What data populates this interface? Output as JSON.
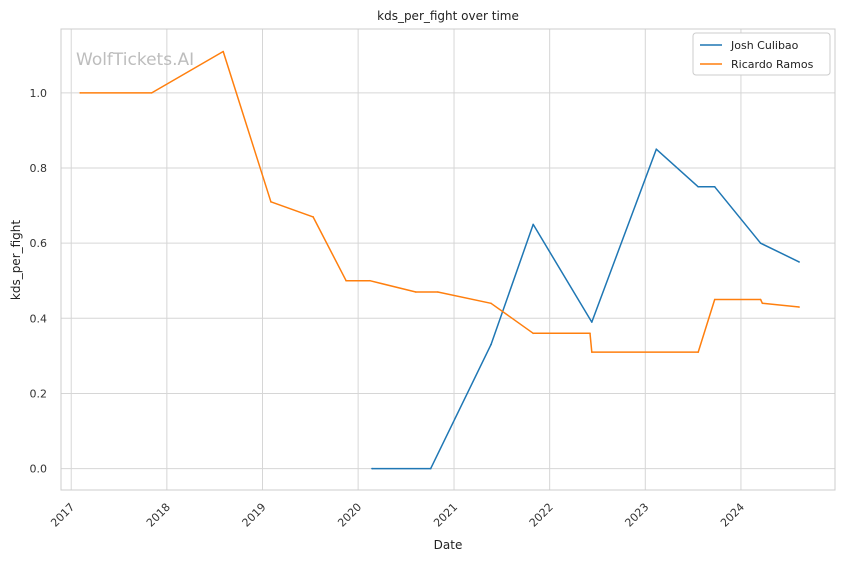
{
  "chart_data": {
    "type": "line",
    "title": "kds_per_fight over time",
    "xlabel": "Date",
    "ylabel": "kds_per_fight",
    "watermark": "WolfTickets.AI",
    "x_ticks": [
      "2017",
      "2018",
      "2019",
      "2020",
      "2021",
      "2022",
      "2023",
      "2024"
    ],
    "y_ticks": [
      "0.0",
      "0.2",
      "0.4",
      "0.6",
      "0.8",
      "1.0"
    ],
    "xlim": [
      "2016-11-23",
      "2024-12-25"
    ],
    "ylim": [
      -0.057,
      1.17
    ],
    "grid": true,
    "legend_position": "top-right",
    "series": [
      {
        "name": "Josh Culibao",
        "color": "#1f77b4",
        "points": [
          {
            "x": "2020-02-23",
            "y": 0.0
          },
          {
            "x": "2020-10-04",
            "y": 0.0
          },
          {
            "x": "2021-05-22",
            "y": 0.33
          },
          {
            "x": "2021-10-30",
            "y": 0.65
          },
          {
            "x": "2022-06-11",
            "y": 0.39
          },
          {
            "x": "2023-02-12",
            "y": 0.85
          },
          {
            "x": "2023-07-22",
            "y": 0.75
          },
          {
            "x": "2023-09-23",
            "y": 0.75
          },
          {
            "x": "2024-03-16",
            "y": 0.6
          },
          {
            "x": "2024-08-10",
            "y": 0.55
          }
        ]
      },
      {
        "name": "Ricardo Ramos",
        "color": "#ff7f0e",
        "points": [
          {
            "x": "2017-02-04",
            "y": 1.0
          },
          {
            "x": "2017-11-04",
            "y": 1.0
          },
          {
            "x": "2018-08-04",
            "y": 1.11
          },
          {
            "x": "2019-02-02",
            "y": 0.71
          },
          {
            "x": "2019-07-13",
            "y": 0.67
          },
          {
            "x": "2019-11-16",
            "y": 0.5
          },
          {
            "x": "2020-02-15",
            "y": 0.5
          },
          {
            "x": "2020-08-08",
            "y": 0.47
          },
          {
            "x": "2020-10-31",
            "y": 0.47
          },
          {
            "x": "2021-05-22",
            "y": 0.44
          },
          {
            "x": "2021-10-30",
            "y": 0.36
          },
          {
            "x": "2022-06-04",
            "y": 0.36
          },
          {
            "x": "2022-06-11",
            "y": 0.31
          },
          {
            "x": "2023-07-22",
            "y": 0.31
          },
          {
            "x": "2023-09-23",
            "y": 0.45
          },
          {
            "x": "2024-03-16",
            "y": 0.45
          },
          {
            "x": "2024-03-23",
            "y": 0.44
          },
          {
            "x": "2024-08-10",
            "y": 0.43
          }
        ]
      }
    ]
  }
}
